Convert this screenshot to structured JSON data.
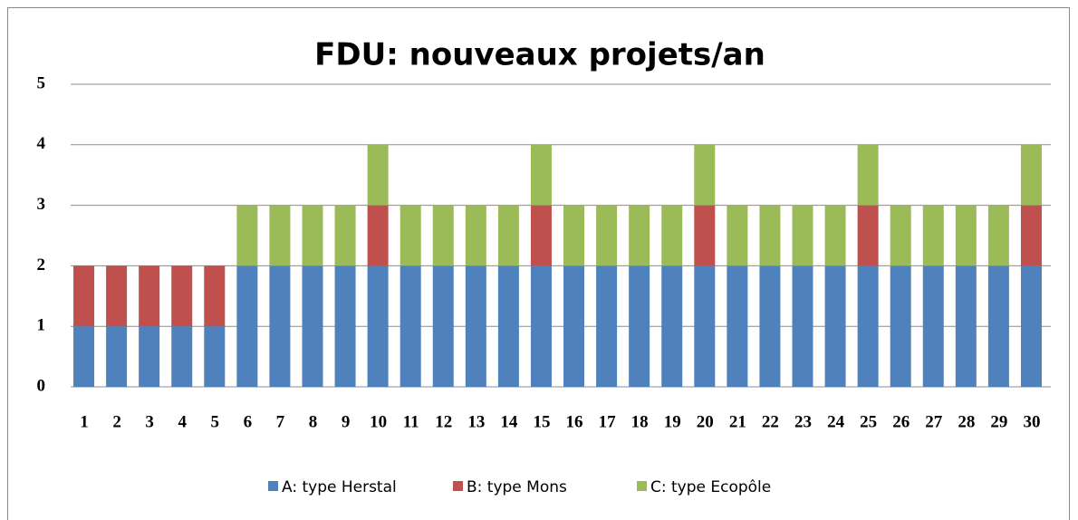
{
  "chart_data": {
    "type": "stacked_bar",
    "title": "FDU: nouveaux projets/an",
    "categories": [
      "1",
      "2",
      "3",
      "4",
      "5",
      "6",
      "7",
      "8",
      "9",
      "10",
      "11",
      "12",
      "13",
      "14",
      "15",
      "16",
      "17",
      "18",
      "19",
      "20",
      "21",
      "22",
      "23",
      "24",
      "25",
      "26",
      "27",
      "28",
      "29",
      "30"
    ],
    "series": [
      {
        "name": "A: type Herstal",
        "color": "#4f81bd",
        "values": [
          1,
          1,
          1,
          1,
          1,
          2,
          2,
          2,
          2,
          2,
          2,
          2,
          2,
          2,
          2,
          2,
          2,
          2,
          2,
          2,
          2,
          2,
          2,
          2,
          2,
          2,
          2,
          2,
          2,
          2
        ]
      },
      {
        "name": "B: type Mons",
        "color": "#c0504d",
        "values": [
          1,
          1,
          1,
          1,
          1,
          0,
          0,
          0,
          0,
          1,
          0,
          0,
          0,
          0,
          1,
          0,
          0,
          0,
          0,
          1,
          0,
          0,
          0,
          0,
          1,
          0,
          0,
          0,
          0,
          1
        ]
      },
      {
        "name": "C: type Ecopôle",
        "color": "#9bbb59",
        "values": [
          0,
          0,
          0,
          0,
          0,
          1,
          1,
          1,
          1,
          1,
          1,
          1,
          1,
          1,
          1,
          1,
          1,
          1,
          1,
          1,
          1,
          1,
          1,
          1,
          1,
          1,
          1,
          1,
          1,
          1
        ]
      }
    ],
    "ylim": [
      0,
      5
    ],
    "yticks": [
      0,
      1,
      2,
      3,
      4,
      5
    ],
    "grid": true,
    "legend": "bottom"
  }
}
